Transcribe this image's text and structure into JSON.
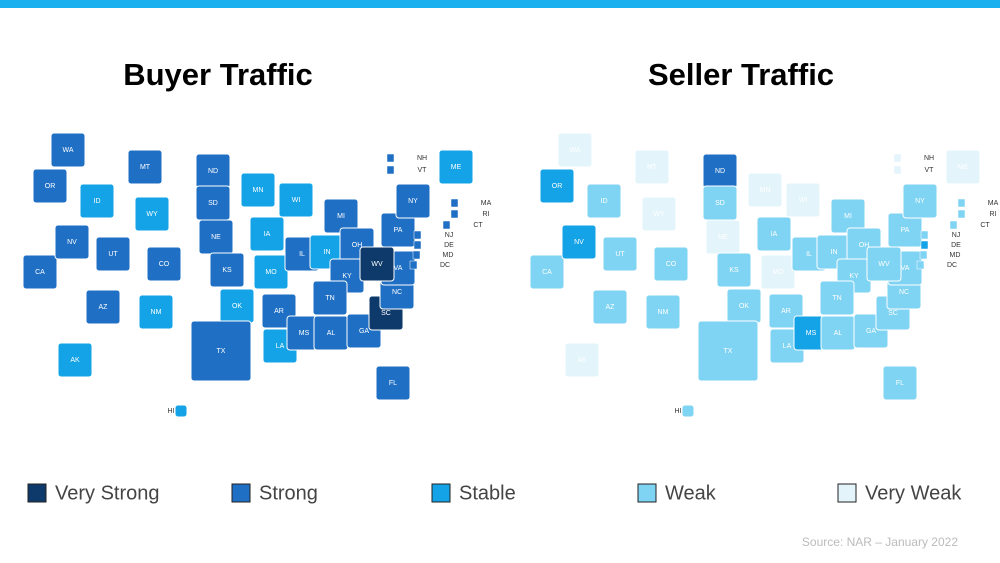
{
  "maps": [
    {
      "title": "Buyer Traffic",
      "states": [
        {
          "label": "WA",
          "color": "#1f6fc4"
        },
        {
          "label": "OR",
          "color": "#1f6fc4"
        },
        {
          "label": "CA",
          "color": "#1f6fc4"
        },
        {
          "label": "NV",
          "color": "#1f6fc4"
        },
        {
          "label": "ID",
          "color": "#13a3e6"
        },
        {
          "label": "MT",
          "color": "#1f6fc4"
        },
        {
          "label": "WY",
          "color": "#13a3e6"
        },
        {
          "label": "UT",
          "color": "#1f6fc4"
        },
        {
          "label": "AZ",
          "color": "#1f6fc4"
        },
        {
          "label": "CO",
          "color": "#1f6fc4"
        },
        {
          "label": "NM",
          "color": "#13a3e6"
        },
        {
          "label": "ND",
          "color": "#1f6fc4"
        },
        {
          "label": "SD",
          "color": "#1f6fc4"
        },
        {
          "label": "NE",
          "color": "#1f6fc4"
        },
        {
          "label": "KS",
          "color": "#1f6fc4"
        },
        {
          "label": "OK",
          "color": "#13a3e6"
        },
        {
          "label": "TX",
          "color": "#1f6fc4"
        },
        {
          "label": "MN",
          "color": "#13a3e6"
        },
        {
          "label": "IA",
          "color": "#13a3e6"
        },
        {
          "label": "MO",
          "color": "#13a3e6"
        },
        {
          "label": "AR",
          "color": "#1f6fc4"
        },
        {
          "label": "LA",
          "color": "#13a3e6"
        },
        {
          "label": "WI",
          "color": "#13a3e6"
        },
        {
          "label": "IL",
          "color": "#1f6fc4"
        },
        {
          "label": "MS",
          "color": "#1f6fc4"
        },
        {
          "label": "MI",
          "color": "#1f6fc4"
        },
        {
          "label": "IN",
          "color": "#13a3e6"
        },
        {
          "label": "OH",
          "color": "#1f6fc4"
        },
        {
          "label": "KY",
          "color": "#1f6fc4"
        },
        {
          "label": "TN",
          "color": "#1f6fc4"
        },
        {
          "label": "AL",
          "color": "#1f6fc4"
        },
        {
          "label": "GA",
          "color": "#1f6fc4"
        },
        {
          "label": "FL",
          "color": "#1f6fc4"
        },
        {
          "label": "SC",
          "color": "#0d3a6b"
        },
        {
          "label": "NC",
          "color": "#1f6fc4"
        },
        {
          "label": "VA",
          "color": "#1f6fc4"
        },
        {
          "label": "WV",
          "color": "#0d3a6b"
        },
        {
          "label": "PA",
          "color": "#1f6fc4"
        },
        {
          "label": "NY",
          "color": "#1f6fc4"
        },
        {
          "label": "ME",
          "color": "#13a3e6"
        },
        {
          "label": "AK",
          "color": "#13a3e6"
        },
        {
          "label": "HI",
          "color": "#13a3e6"
        },
        {
          "label": "NH",
          "color": "#1f6fc4"
        },
        {
          "label": "VT",
          "color": "#1f6fc4"
        },
        {
          "label": "MA",
          "color": "#1f6fc4"
        },
        {
          "label": "RI",
          "color": "#1f6fc4"
        },
        {
          "label": "CT",
          "color": "#1f6fc4"
        },
        {
          "label": "NJ",
          "color": "#1f6fc4"
        },
        {
          "label": "DE",
          "color": "#1f6fc4"
        },
        {
          "label": "MD",
          "color": "#1f6fc4"
        },
        {
          "label": "DC",
          "color": "#1f6fc4"
        }
      ]
    },
    {
      "title": "Seller Traffic",
      "states": [
        {
          "label": "WA",
          "color": "#e3f4fb"
        },
        {
          "label": "OR",
          "color": "#13a3e6"
        },
        {
          "label": "CA",
          "color": "#7fd3f3"
        },
        {
          "label": "NV",
          "color": "#13a3e6"
        },
        {
          "label": "ID",
          "color": "#7fd3f3"
        },
        {
          "label": "MT",
          "color": "#e3f4fb"
        },
        {
          "label": "WY",
          "color": "#e3f4fb"
        },
        {
          "label": "UT",
          "color": "#7fd3f3"
        },
        {
          "label": "AZ",
          "color": "#7fd3f3"
        },
        {
          "label": "CO",
          "color": "#7fd3f3"
        },
        {
          "label": "NM",
          "color": "#7fd3f3"
        },
        {
          "label": "ND",
          "color": "#1f6fc4"
        },
        {
          "label": "SD",
          "color": "#7fd3f3"
        },
        {
          "label": "NE",
          "color": "#e3f4fb"
        },
        {
          "label": "KS",
          "color": "#7fd3f3"
        },
        {
          "label": "OK",
          "color": "#7fd3f3"
        },
        {
          "label": "TX",
          "color": "#7fd3f3"
        },
        {
          "label": "MN",
          "color": "#e3f4fb"
        },
        {
          "label": "IA",
          "color": "#7fd3f3"
        },
        {
          "label": "MO",
          "color": "#e3f4fb"
        },
        {
          "label": "AR",
          "color": "#7fd3f3"
        },
        {
          "label": "LA",
          "color": "#7fd3f3"
        },
        {
          "label": "WI",
          "color": "#e3f4fb"
        },
        {
          "label": "IL",
          "color": "#7fd3f3"
        },
        {
          "label": "MS",
          "color": "#13a3e6"
        },
        {
          "label": "MI",
          "color": "#7fd3f3"
        },
        {
          "label": "IN",
          "color": "#7fd3f3"
        },
        {
          "label": "OH",
          "color": "#7fd3f3"
        },
        {
          "label": "KY",
          "color": "#7fd3f3"
        },
        {
          "label": "TN",
          "color": "#7fd3f3"
        },
        {
          "label": "AL",
          "color": "#7fd3f3"
        },
        {
          "label": "GA",
          "color": "#7fd3f3"
        },
        {
          "label": "FL",
          "color": "#7fd3f3"
        },
        {
          "label": "SC",
          "color": "#7fd3f3"
        },
        {
          "label": "NC",
          "color": "#7fd3f3"
        },
        {
          "label": "VA",
          "color": "#7fd3f3"
        },
        {
          "label": "WV",
          "color": "#7fd3f3"
        },
        {
          "label": "PA",
          "color": "#7fd3f3"
        },
        {
          "label": "NY",
          "color": "#7fd3f3"
        },
        {
          "label": "ME",
          "color": "#e3f4fb"
        },
        {
          "label": "AK",
          "color": "#e3f4fb"
        },
        {
          "label": "HI",
          "color": "#7fd3f3"
        },
        {
          "label": "NH",
          "color": "#e3f4fb"
        },
        {
          "label": "VT",
          "color": "#e3f4fb"
        },
        {
          "label": "MA",
          "color": "#7fd3f3"
        },
        {
          "label": "RI",
          "color": "#7fd3f3"
        },
        {
          "label": "CT",
          "color": "#7fd3f3"
        },
        {
          "label": "NJ",
          "color": "#7fd3f3"
        },
        {
          "label": "DE",
          "color": "#13a3e6"
        },
        {
          "label": "MD",
          "color": "#7fd3f3"
        },
        {
          "label": "DC",
          "color": "#7fd3f3"
        }
      ]
    }
  ],
  "legend": [
    {
      "label": "Very Strong",
      "color": "#0d3a6b"
    },
    {
      "label": "Strong",
      "color": "#1f6fc4"
    },
    {
      "label": "Stable",
      "color": "#13a3e6"
    },
    {
      "label": "Weak",
      "color": "#7fd3f3"
    },
    {
      "label": "Very Weak",
      "color": "#e3f4fb"
    }
  ],
  "source": "Source: NAR – January 2022"
}
